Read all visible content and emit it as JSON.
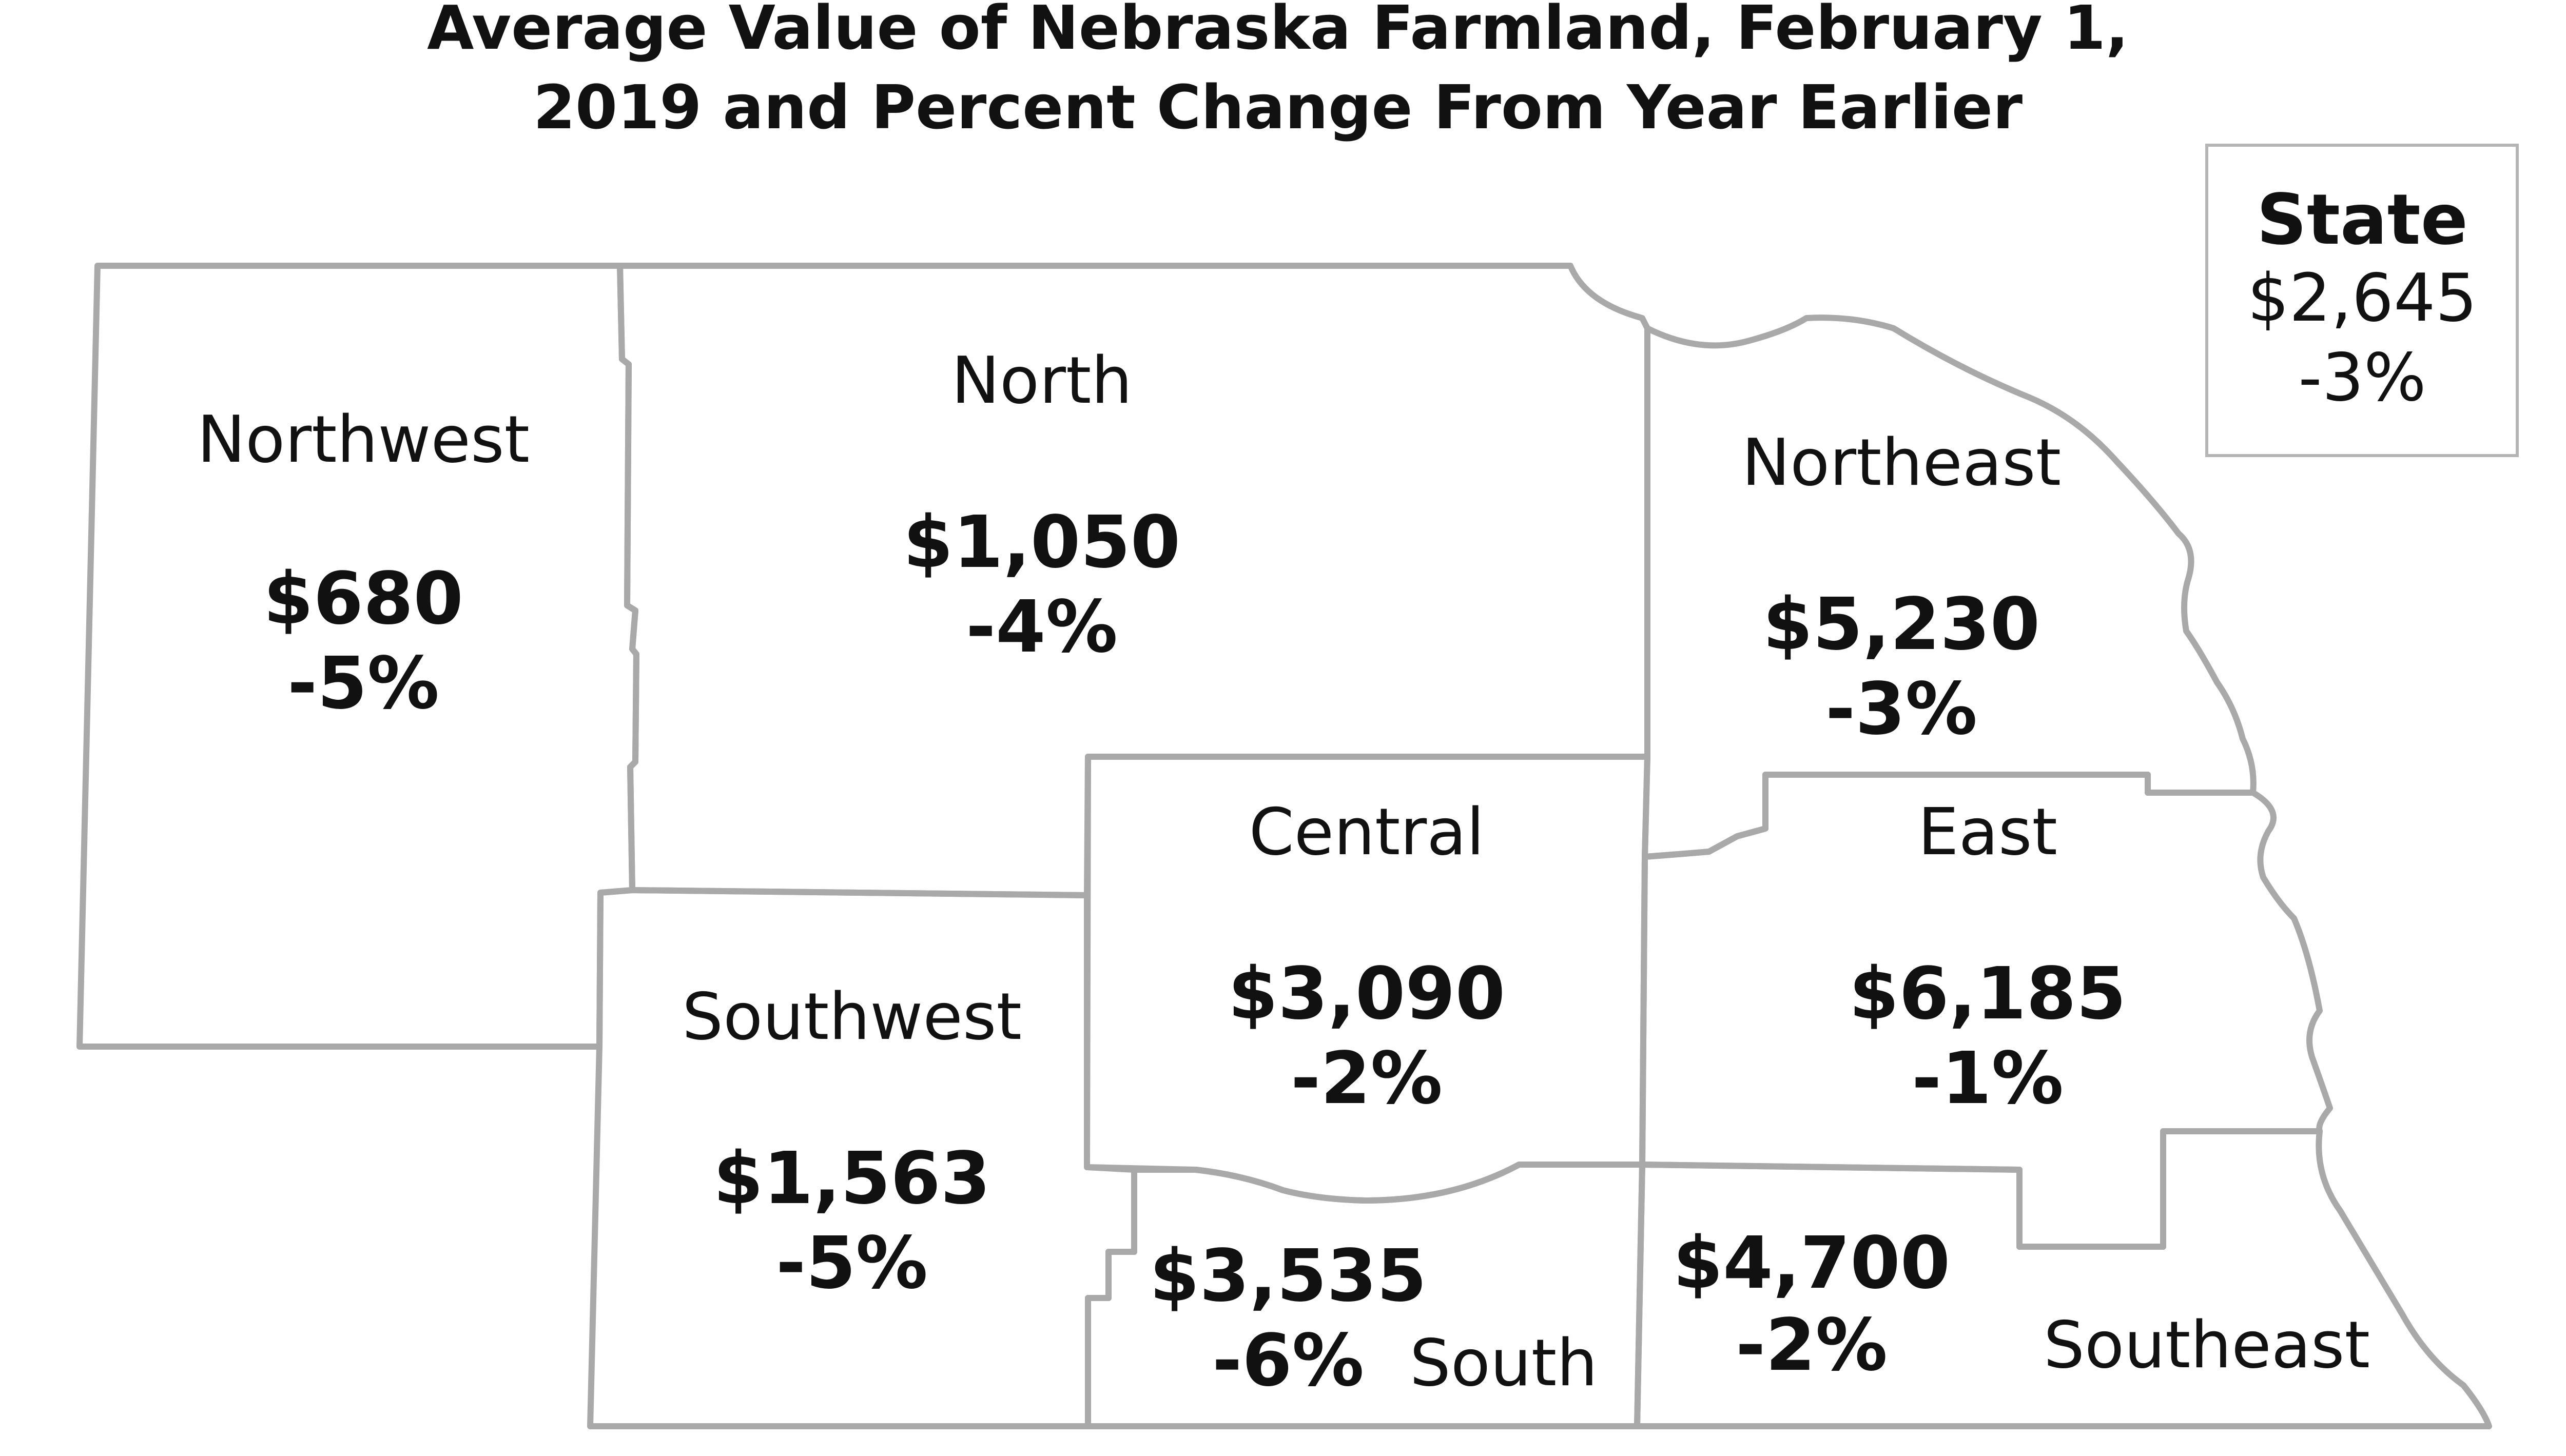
{
  "title": {
    "line1": "Average Value of Nebraska Farmland, February 1,",
    "line2": "2019 and Percent Change From Year Earlier"
  },
  "state": {
    "label": "State",
    "value": "$2,645",
    "change": "-3%"
  },
  "regions": {
    "northwest": {
      "name": "Northwest",
      "value": "$680",
      "change": "-5%"
    },
    "north": {
      "name": "North",
      "value": "$1,050",
      "change": "-4%"
    },
    "northeast": {
      "name": "Northeast",
      "value": "$5,230",
      "change": "-3%"
    },
    "central": {
      "name": "Central",
      "value": "$3,090",
      "change": "-2%"
    },
    "east": {
      "name": "East",
      "value": "$6,185",
      "change": "-1%"
    },
    "southwest": {
      "name": "Southwest",
      "value": "$1,563",
      "change": "-5%"
    },
    "south": {
      "name": "South",
      "value": "$3,535",
      "change": "-6%"
    },
    "southeast": {
      "name": "Southeast",
      "value": "$4,700",
      "change": "-2%"
    }
  },
  "colors": {
    "border": "#a9a9a9",
    "text": "#111111",
    "background": "#ffffff"
  }
}
